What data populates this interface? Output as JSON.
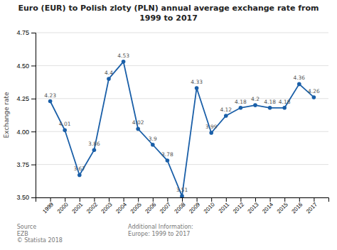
{
  "chart_data": {
    "type": "line",
    "title": "Euro (EUR) to Polish zloty (PLN) annual average exchange rate from\n1999 to 2017",
    "y_label": "Exchange rate",
    "x": [
      1999,
      2000,
      2001,
      2002,
      2003,
      2004,
      2005,
      2006,
      2007,
      2008,
      2009,
      2010,
      2011,
      2012,
      2013,
      2014,
      2015,
      2016,
      2017
    ],
    "values": [
      4.23,
      4.01,
      3.67,
      3.86,
      4.4,
      4.53,
      4.02,
      3.9,
      3.78,
      3.51,
      4.33,
      3.99,
      4.12,
      4.18,
      4.2,
      4.18,
      4.18,
      4.36,
      4.26
    ],
    "color": "#1a5fa8",
    "marker": "circle",
    "xlim": [
      1998,
      2018
    ],
    "xticks": [
      1999,
      2000,
      2001,
      2002,
      2003,
      2004,
      2005,
      2006,
      2007,
      2008,
      2009,
      2010,
      2011,
      2012,
      2013,
      2014,
      2015,
      2016,
      2017
    ],
    "ylim": [
      3.5,
      4.75
    ],
    "yticks": [
      {
        "value": 3.5,
        "label": "3.50"
      },
      3.75,
      {
        "value": 4.0,
        "label": "4.00"
      },
      4.25,
      {
        "value": 4.5,
        "label": "4.50"
      },
      4.75
    ],
    "grid": true,
    "data_labels": true,
    "annotations": [
      "Source\nEZB\n© Statista 2018",
      "Additional Information:\nEurope: 1999 to 2017"
    ]
  }
}
